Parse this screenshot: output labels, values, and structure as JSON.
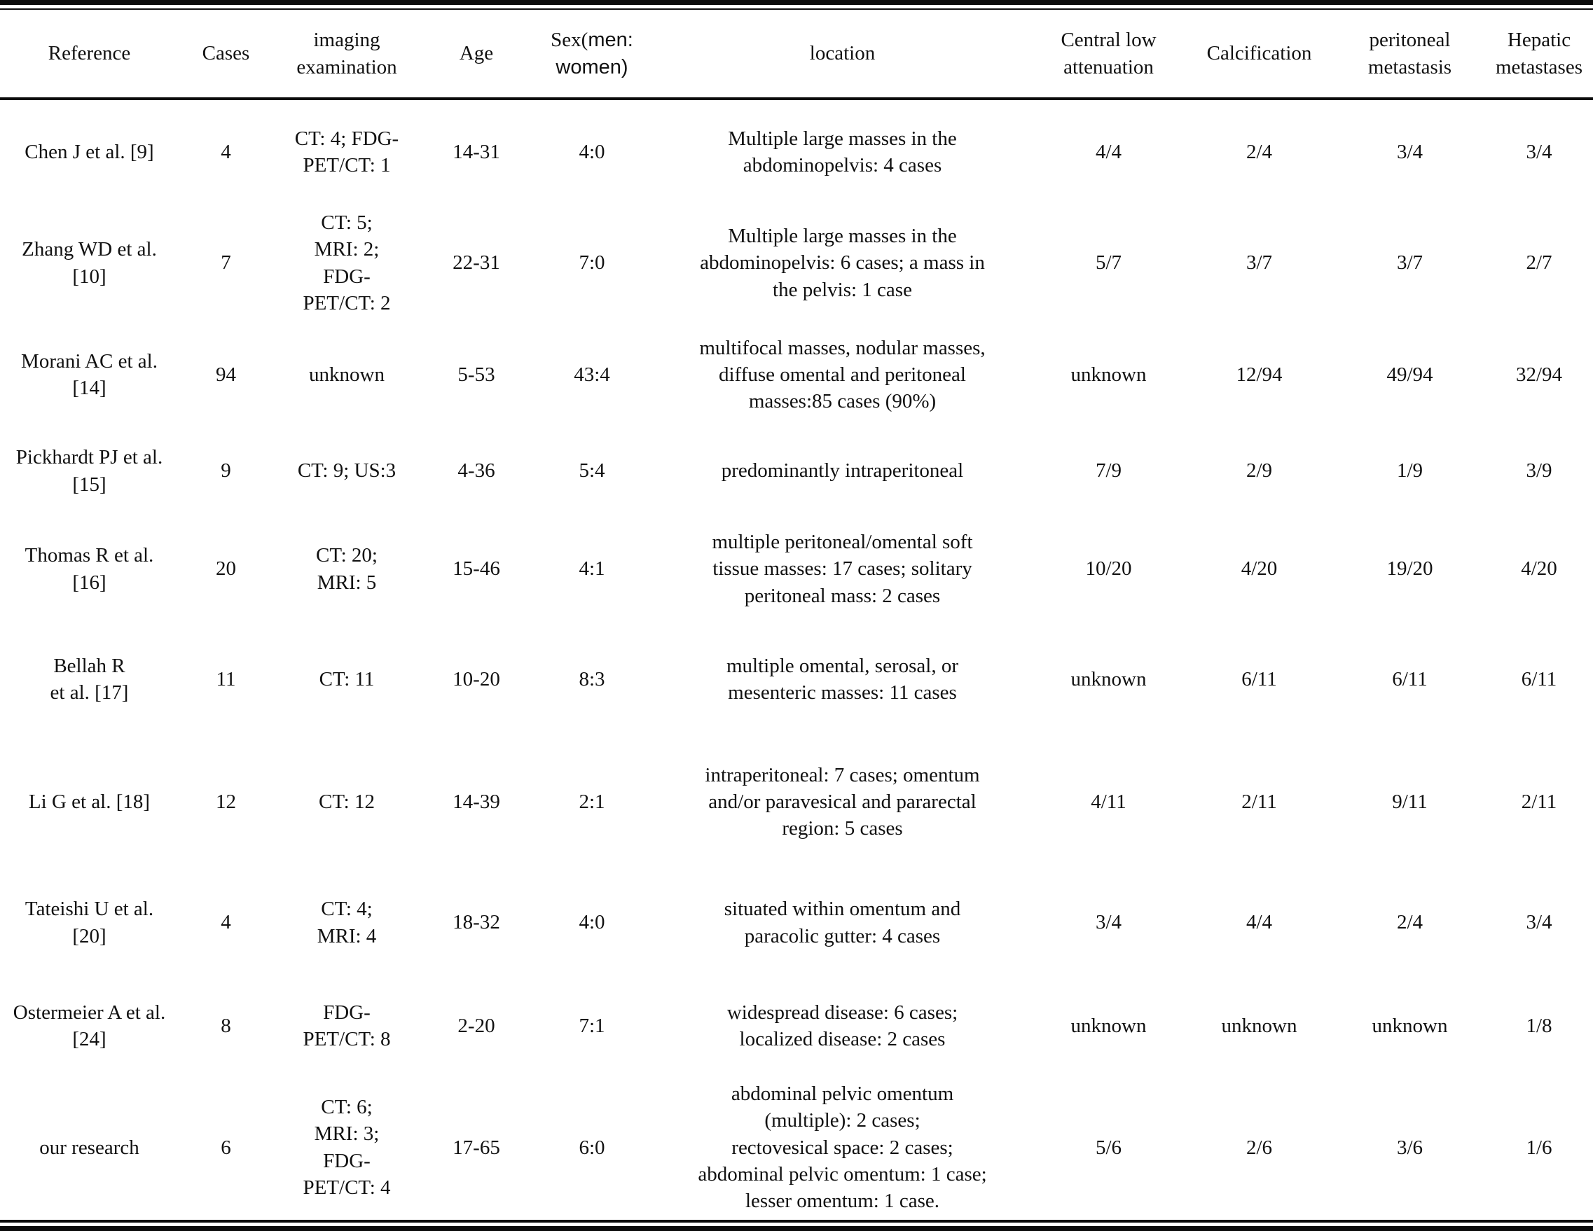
{
  "table": {
    "columns": [
      {
        "key": "reference",
        "label": "Reference"
      },
      {
        "key": "cases",
        "label": "Cases"
      },
      {
        "key": "imaging",
        "label": "imaging examination"
      },
      {
        "key": "age",
        "label": "Age"
      },
      {
        "key": "sex",
        "label_serif": "Sex(",
        "label_sans": "men: women)"
      },
      {
        "key": "location",
        "label": "location"
      },
      {
        "key": "central_low_attenuation",
        "label": "Central low attenuation"
      },
      {
        "key": "calcification",
        "label": "Calcification"
      },
      {
        "key": "peritoneal_metastasis",
        "label": "peritoneal metastasis"
      },
      {
        "key": "hepatic_metastases",
        "label": "Hepatic metastases"
      }
    ],
    "rows": [
      {
        "reference": "Chen J et al. [9]",
        "cases": "4",
        "imaging": "CT: 4; FDG-\nPET/CT: 1",
        "age": "14-31",
        "sex": "4:0",
        "location": "Multiple large masses in the\nabdominopelvis: 4 cases",
        "central_low_attenuation": "4/4",
        "calcification": "2/4",
        "peritoneal_metastasis": "3/4",
        "hepatic_metastases": "3/4"
      },
      {
        "reference": "Zhang WD et al.\n[10]",
        "cases": "7",
        "imaging": "CT: 5;\nMRI: 2;\nFDG-\nPET/CT: 2",
        "age": "22-31",
        "sex": "7:0",
        "location": "Multiple large masses in the\nabdominopelvis: 6 cases; a mass in\nthe pelvis: 1 case",
        "central_low_attenuation": "5/7",
        "calcification": "3/7",
        "peritoneal_metastasis": "3/7",
        "hepatic_metastases": "2/7"
      },
      {
        "reference": "Morani AC et al.\n[14]",
        "cases": "94",
        "imaging": "unknown",
        "age": "5-53",
        "sex": "43:4",
        "location": "multifocal masses, nodular masses,\ndiffuse omental and peritoneal\nmasses:85 cases (90%)",
        "central_low_attenuation": "unknown",
        "calcification": "12/94",
        "peritoneal_metastasis": "49/94",
        "hepatic_metastases": "32/94"
      },
      {
        "reference": "Pickhardt PJ et al.\n[15]",
        "cases": "9",
        "imaging": "CT: 9; US:3",
        "age": "4-36",
        "sex": "5:4",
        "location": "predominantly intraperitoneal",
        "central_low_attenuation": "7/9",
        "calcification": "2/9",
        "peritoneal_metastasis": "1/9",
        "hepatic_metastases": "3/9"
      },
      {
        "reference": "Thomas R et al.\n[16]",
        "cases": "20",
        "imaging": "CT: 20;\nMRI: 5",
        "age": "15-46",
        "sex": "4:1",
        "location": "multiple peritoneal/omental soft\ntissue masses: 17 cases; solitary\nperitoneal mass: 2 cases",
        "central_low_attenuation": "10/20",
        "calcification": "4/20",
        "peritoneal_metastasis": "19/20",
        "hepatic_metastases": "4/20"
      },
      {
        "reference": "Bellah R\net al. [17]",
        "cases": "11",
        "imaging": "CT: 11",
        "age": "10-20",
        "sex": "8:3",
        "location": "multiple omental, serosal, or\nmesenteric masses: 11 cases",
        "central_low_attenuation": "unknown",
        "calcification": "6/11",
        "peritoneal_metastasis": "6/11",
        "hepatic_metastases": "6/11"
      },
      {
        "reference": "Li G et al. [18]",
        "cases": "12",
        "imaging": "CT: 12",
        "age": "14-39",
        "sex": "2:1",
        "location": "intraperitoneal: 7 cases; omentum\nand/or paravesical and pararectal\nregion: 5 cases",
        "central_low_attenuation": "4/11",
        "calcification": "2/11",
        "peritoneal_metastasis": "9/11",
        "hepatic_metastases": "2/11"
      },
      {
        "reference": "Tateishi U et al.\n[20]",
        "cases": "4",
        "imaging": "CT: 4;\nMRI: 4",
        "age": "18-32",
        "sex": "4:0",
        "location": "situated within omentum and\nparacolic gutter: 4 cases",
        "central_low_attenuation": "3/4",
        "calcification": "4/4",
        "peritoneal_metastasis": "2/4",
        "hepatic_metastases": "3/4"
      },
      {
        "reference": "Ostermeier A et al.\n[24]",
        "cases": "8",
        "imaging": "FDG-\nPET/CT: 8",
        "age": "2-20",
        "sex": "7:1",
        "location": "widespread disease: 6 cases;\nlocalized disease: 2 cases",
        "central_low_attenuation": "unknown",
        "calcification": "unknown",
        "peritoneal_metastasis": "unknown",
        "hepatic_metastases": "1/8"
      },
      {
        "reference": "our research",
        "cases": "6",
        "imaging": "CT: 6;\nMRI: 3;\nFDG-\nPET/CT: 4",
        "age": "17-65",
        "sex": "6:0",
        "location": "abdominal pelvic omentum\n(multiple): 2 cases;\nrectovesical space: 2 cases;\nabdominal pelvic omentum: 1 case;\nlesser omentum: 1 case.",
        "central_low_attenuation": "5/6",
        "calcification": "2/6",
        "peritoneal_metastasis": "3/6",
        "hepatic_metastases": "1/6"
      }
    ]
  }
}
